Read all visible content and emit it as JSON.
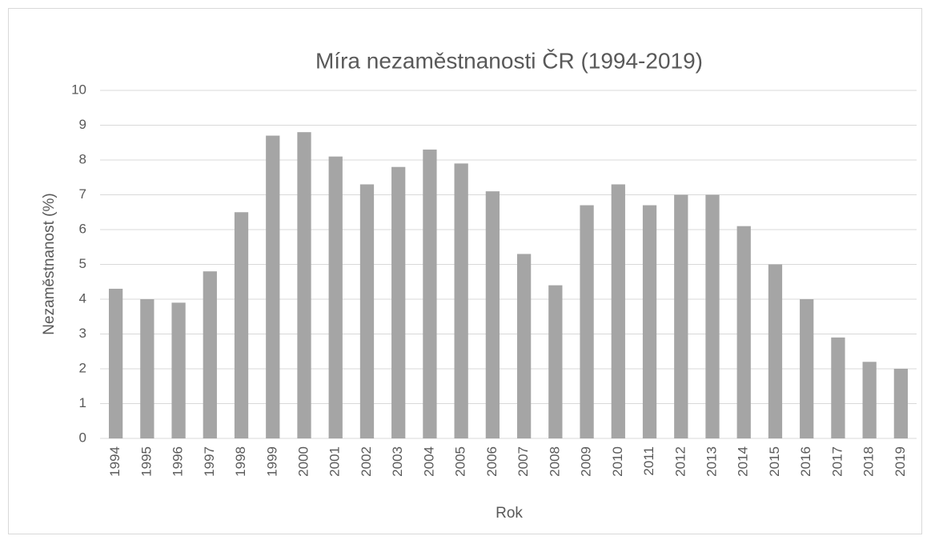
{
  "chart_data": {
    "type": "bar",
    "title": "Míra nezaměstnanosti ČR (1994-2019)",
    "x_label": "Rok",
    "y_label": "Nezaměstnanost (%)",
    "categories": [
      "1994",
      "1995",
      "1996",
      "1997",
      "1998",
      "1999",
      "2000",
      "2001",
      "2002",
      "2003",
      "2004",
      "2005",
      "2006",
      "2007",
      "2008",
      "2009",
      "2010",
      "2011",
      "2012",
      "2013",
      "2014",
      "2015",
      "2016",
      "2017",
      "2018",
      "2019"
    ],
    "values": [
      4.3,
      4.0,
      3.9,
      4.8,
      6.5,
      8.7,
      8.8,
      8.1,
      7.3,
      7.8,
      8.3,
      7.9,
      7.1,
      5.3,
      4.4,
      6.7,
      7.3,
      6.7,
      7.0,
      7.0,
      6.1,
      5.0,
      4.0,
      2.9,
      2.2,
      2.0
    ],
    "color": "#a5a5a5",
    "ylim": [
      0,
      10
    ],
    "yticks": [
      0,
      1,
      2,
      3,
      4,
      5,
      6,
      7,
      8,
      9,
      10
    ],
    "grid": true
  }
}
